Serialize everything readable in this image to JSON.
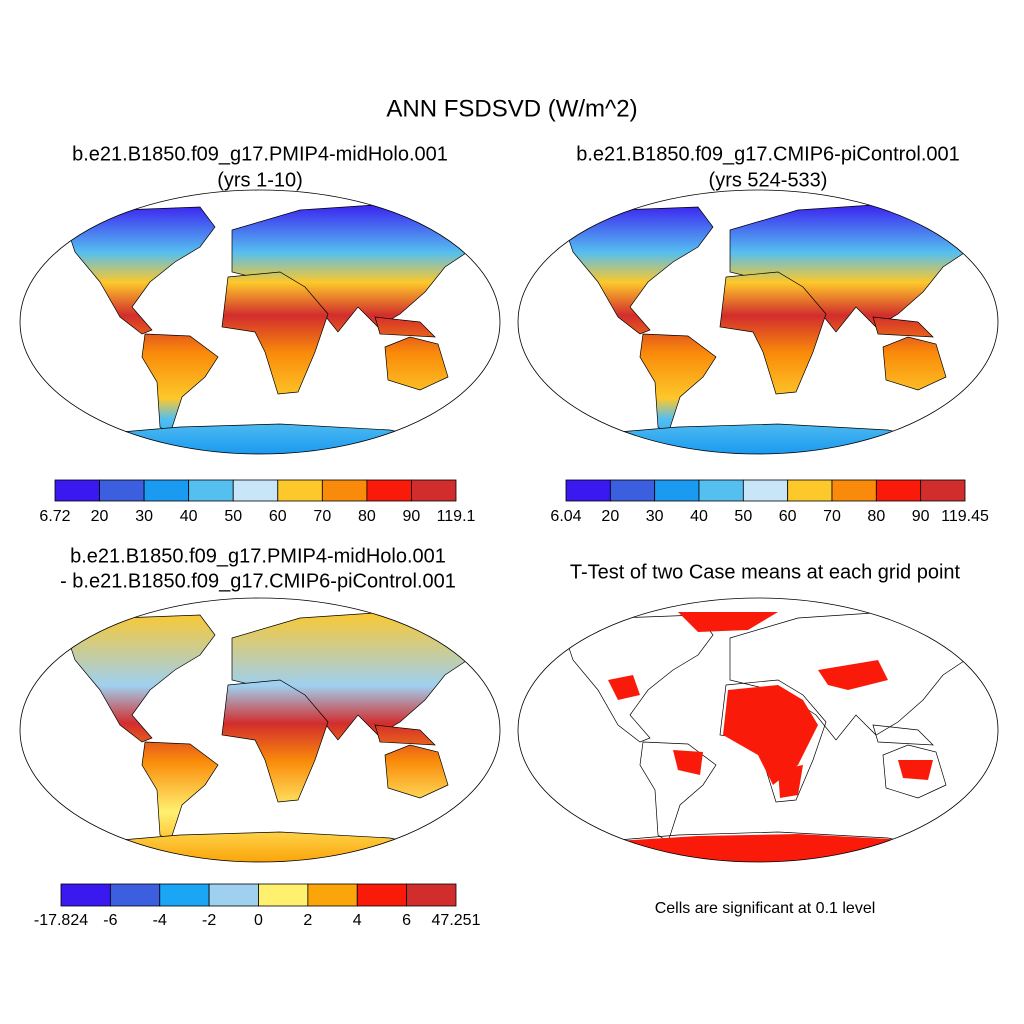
{
  "title": "ANN FSDSVD (W/m^2)",
  "panels": [
    {
      "title": [
        "b.e21.B1850.f09_g17.PMIP4-midHolo.001",
        "(yrs 1-10)"
      ],
      "colorbar": {
        "ticks": [
          6.72,
          20,
          30,
          40,
          50,
          60,
          70,
          80,
          90,
          119.1
        ],
        "colors": [
          "#3a19f0",
          "#3c5fe0",
          "#1a9af0",
          "#55bff0",
          "#c8e6f8",
          "#fdc82a",
          "#fa8b0a",
          "#fa1a0a",
          "#d22d2d"
        ]
      }
    },
    {
      "title": [
        "b.e21.B1850.f09_g17.CMIP6-piControl.001",
        "(yrs 524-533)"
      ],
      "colorbar": {
        "ticks": [
          6.04,
          20,
          30,
          40,
          50,
          60,
          70,
          80,
          90,
          119.45
        ],
        "colors": [
          "#3a19f0",
          "#3c5fe0",
          "#1a9af0",
          "#55bff0",
          "#c8e6f8",
          "#fdc82a",
          "#fa8b0a",
          "#fa1a0a",
          "#d22d2d"
        ]
      }
    },
    {
      "title": [
        "b.e21.B1850.f09_g17.PMIP4-midHolo.001",
        "- b.e21.B1850.f09_g17.CMIP6-piControl.001"
      ],
      "colorbar": {
        "ticks": [
          -17.824,
          -6,
          -4,
          -2,
          0,
          2,
          4,
          6,
          47.251
        ],
        "colors": [
          "#3a19f0",
          "#3c5fe0",
          "#1aa5f5",
          "#9fd0f0",
          "#fff070",
          "#fba50a",
          "#fa1a0a",
          "#d22d2d"
        ]
      }
    },
    {
      "title": [
        "T-Test of two Case means at each grid point"
      ],
      "note": "Cells are significant at 0.1 level"
    }
  ]
}
